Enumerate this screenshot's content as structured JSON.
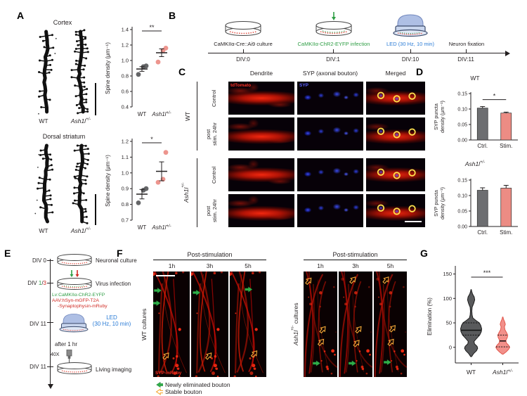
{
  "panels": {
    "A": {
      "label": "A",
      "cortex": {
        "title": "Cortex",
        "images": [
          {
            "label_base": "WT",
            "label_sup": ""
          },
          {
            "label_base": "Ash1l",
            "label_sup": "+/-"
          }
        ]
      },
      "striatum": {
        "title": "Dorsal striatum",
        "images": [
          {
            "label_base": "WT",
            "label_sup": ""
          },
          {
            "label_base": "Ash1l",
            "label_sup": "+/-"
          }
        ]
      }
    },
    "B": {
      "label": "B",
      "steps": [
        {
          "name": "CaMKIIα-Cre::Ai9 culture",
          "div": "DIV:0",
          "color": "#231f20"
        },
        {
          "name": "CaMKIIα-ChR2-EYFP infection",
          "div": "DIV:1",
          "color": "#2f9e45"
        },
        {
          "name": "LED (30 Hz, 10 min)",
          "div": "DIV:10",
          "color": "#2b7cd6"
        },
        {
          "name": "Neuron fixation",
          "div": "DIV:11",
          "color": "#231f20"
        }
      ]
    },
    "C": {
      "label": "C",
      "col_headers": [
        "Dendrite",
        "SYP (axonal bouton)",
        "Merged"
      ],
      "groups": [
        {
          "label_base": "WT",
          "label_sup": ""
        },
        {
          "label_base": "Ash1l",
          "label_sup": "+/-"
        }
      ],
      "row_labels": [
        [
          "Control"
        ],
        [
          "post",
          "stim. 24hr"
        ],
        [
          "Control"
        ],
        [
          "post",
          "stim. 24hr"
        ]
      ],
      "overlays": {
        "dendrite": "tdTomato",
        "syp": "SYP"
      }
    },
    "D": {
      "label": "D"
    },
    "E": {
      "label": "E",
      "events": [
        {
          "div": "DIV 0",
          "text": "Neuronal culture"
        },
        {
          "div_parts": [
            {
              "t": "DIV ",
              "c": "#231f20"
            },
            {
              "t": "1",
              "c": "#2f9e45"
            },
            {
              "t": "/",
              "c": "#231f20"
            },
            {
              "t": "3",
              "c": "#d02a23"
            }
          ],
          "text": "Virus infection"
        },
        {
          "lines": [
            {
              "t": "Lv:CaMKIIα-ChR2-EYFP",
              "c": "#2f9e45"
            },
            {
              "t": "AAV:hSyn-mGFP-T2A",
              "c": "#d02a23"
            },
            {
              "t": "-Synaptophysin-mRuby",
              "c": "#d02a23"
            }
          ]
        },
        {
          "div": "DIV 11",
          "text_l1": "LED",
          "text_l2": "(30 Hz, 10 min)",
          "color": "#2b7cd6"
        },
        {
          "text": "after 1 hr"
        },
        {
          "div": "DIV 11",
          "text": "Living imaging",
          "objective": "40X"
        }
      ]
    },
    "F": {
      "label": "F",
      "groups": [
        {
          "title": "Post-stimulation",
          "times": [
            "1h",
            "3h",
            "5h"
          ],
          "side_base": "WT",
          "side_sup": "",
          "side_rest": " cultures",
          "overlay": "SYP-mRuby",
          "cells": [
            {
              "markers": [
                {
                  "t": "new",
                  "x": 0.16,
                  "y": 0.18,
                  "a": 0
                },
                {
                  "t": "new",
                  "x": 0.13,
                  "y": 0.3,
                  "a": 0
                },
                {
                  "t": "stable",
                  "x": 0.38,
                  "y": 0.79,
                  "a": -50
                }
              ]
            },
            {
              "markers": [
                {
                  "t": "new",
                  "x": 0.18,
                  "y": 0.2,
                  "a": 0
                },
                {
                  "t": "stable",
                  "x": 0.5,
                  "y": 0.79,
                  "a": -50
                }
              ]
            },
            {
              "markers": [
                {
                  "t": "new",
                  "x": 0.55,
                  "y": 0.17,
                  "a": 0
                },
                {
                  "t": "stable",
                  "x": 0.7,
                  "y": 0.77,
                  "a": -50
                }
              ]
            }
          ]
        },
        {
          "title": "Post-stimulation",
          "times": [
            "1h",
            "3h",
            "5h"
          ],
          "side_base": "Ash1l",
          "side_sup": "+/-",
          "side_rest": " cultures",
          "overlay": "",
          "cells": [
            {
              "markers": [
                {
                  "t": "stable",
                  "x": 0.18,
                  "y": 0.08,
                  "a": -50
                },
                {
                  "t": "stable",
                  "x": 0.6,
                  "y": 0.54,
                  "a": -50
                },
                {
                  "t": "stable",
                  "x": 0.55,
                  "y": 0.66,
                  "a": -50
                },
                {
                  "t": "new",
                  "x": 0.42,
                  "y": 0.87,
                  "a": 0
                }
              ]
            },
            {
              "markers": [
                {
                  "t": "stable",
                  "x": 0.45,
                  "y": 0.07,
                  "a": -50
                },
                {
                  "t": "stable",
                  "x": 0.62,
                  "y": 0.54,
                  "a": -50
                },
                {
                  "t": "stable",
                  "x": 0.56,
                  "y": 0.67,
                  "a": -50
                },
                {
                  "t": "new",
                  "x": 0.44,
                  "y": 0.87,
                  "a": 0
                }
              ]
            },
            {
              "markers": [
                {
                  "t": "stable",
                  "x": 0.4,
                  "y": 0.07,
                  "a": -50
                },
                {
                  "t": "stable",
                  "x": 0.6,
                  "y": 0.53,
                  "a": -50
                },
                {
                  "t": "stable",
                  "x": 0.55,
                  "y": 0.66,
                  "a": -50
                },
                {
                  "t": "new",
                  "x": 0.45,
                  "y": 0.86,
                  "a": 0
                }
              ]
            }
          ]
        }
      ],
      "legend": [
        {
          "label": "Newly eliminated bouton"
        },
        {
          "label": "Stable bouton"
        }
      ]
    },
    "G": {
      "label": "G"
    }
  },
  "chart_data": [
    {
      "type": "scatter",
      "region": "Cortex",
      "ylabel": "Spine density (μm⁻¹)",
      "ylim": [
        0.4,
        1.4
      ],
      "yticks": [
        0.4,
        0.6,
        0.8,
        1.0,
        1.2,
        1.4
      ],
      "decimals": 1,
      "sig": "**",
      "groups": [
        {
          "label_base": "WT",
          "label_sup": "",
          "italic": false,
          "color": "#58595b",
          "points": [
            0.82,
            0.92,
            0.93
          ],
          "mean": 0.89,
          "sem": 0.03
        },
        {
          "label_base": "Ash1l",
          "label_sup": "+/-",
          "italic": true,
          "color": "#ec8c84",
          "points": [
            0.98,
            1.13,
            1.16
          ],
          "mean": 1.1,
          "sem": 0.05
        }
      ]
    },
    {
      "type": "scatter",
      "region": "Dorsal striatum",
      "ylabel": "Spine density (μm⁻¹)",
      "ylim": [
        0.7,
        1.2
      ],
      "yticks": [
        0.7,
        0.8,
        0.9,
        1.0,
        1.1,
        1.2
      ],
      "decimals": 1,
      "sig": "*",
      "groups": [
        {
          "label_base": "WT",
          "label_sup": "",
          "italic": false,
          "color": "#58595b",
          "points": [
            0.81,
            0.89,
            0.9
          ],
          "mean": 0.865,
          "sem": 0.03
        },
        {
          "label_base": "Ash1l",
          "label_sup": "+/-",
          "italic": true,
          "color": "#ec8c84",
          "points": [
            0.94,
            0.96,
            1.13
          ],
          "mean": 1.01,
          "sem": 0.06
        }
      ]
    },
    {
      "type": "bar",
      "title_base": "WT",
      "title_sup": "",
      "ylabel_lines": [
        "SYP puncta",
        "density (μm⁻¹)"
      ],
      "ylim": [
        0,
        0.15
      ],
      "yticks": [
        0,
        0.05,
        0.1,
        0.15
      ],
      "decimals": 2,
      "sig": "*",
      "categories": [
        "Ctrl.",
        "Stim."
      ],
      "values": [
        0.103,
        0.087
      ],
      "errors": [
        0.005,
        0.003
      ],
      "colors": [
        "#6d6e71",
        "#ec8c84"
      ]
    },
    {
      "type": "bar",
      "title_base": "Ash1l",
      "title_sup": "+/-",
      "ylabel_lines": [
        "SYP puncta",
        "density (μm⁻¹)"
      ],
      "ylim": [
        0,
        0.15
      ],
      "yticks": [
        0,
        0.05,
        0.1,
        0.15
      ],
      "decimals": 2,
      "sig": null,
      "categories": [
        "Ctrl.",
        "Stim."
      ],
      "values": [
        0.117,
        0.124
      ],
      "errors": [
        0.008,
        0.009
      ],
      "colors": [
        "#6d6e71",
        "#ec8c84"
      ]
    },
    {
      "type": "violin",
      "ylabel": "Elimination (%)",
      "ylim": [
        -32,
        158
      ],
      "yticks": [
        0,
        50,
        100,
        150
      ],
      "decimals": 0,
      "sig": "***",
      "groups": [
        {
          "label_base": "WT",
          "label_sup": "",
          "italic": false,
          "fill": "#595a5c",
          "stroke": "#1b1b1b",
          "median": 35,
          "q1": 25,
          "q3": 50,
          "profile": [
            [
              -19,
              0.04
            ],
            [
              -13,
              0.2
            ],
            [
              -7,
              0.45
            ],
            [
              -2,
              0.55
            ],
            [
              2,
              0.5
            ],
            [
              7,
              0.28
            ],
            [
              12,
              0.24
            ],
            [
              18,
              0.45
            ],
            [
              25,
              0.72
            ],
            [
              32,
              0.85
            ],
            [
              38,
              0.88
            ],
            [
              45,
              0.8
            ],
            [
              50,
              0.68
            ],
            [
              55,
              0.4
            ],
            [
              60,
              0.15
            ],
            [
              66,
              0.08
            ],
            [
              74,
              0.06
            ],
            [
              82,
              0.08
            ],
            [
              90,
              0.22
            ],
            [
              97,
              0.3
            ],
            [
              103,
              0.26
            ],
            [
              109,
              0.12
            ],
            [
              115,
              0.04
            ],
            [
              118,
              0.02
            ]
          ]
        },
        {
          "label_base": "Ash1l",
          "label_sup": "+/-",
          "italic": true,
          "fill": "#f2908a",
          "stroke": "#e2574c",
          "median": 13,
          "q1": 1,
          "q3": 25,
          "profile": [
            [
              -14,
              0.04
            ],
            [
              -9,
              0.3
            ],
            [
              -4,
              0.5
            ],
            [
              0,
              0.58
            ],
            [
              4,
              0.5
            ],
            [
              9,
              0.3
            ],
            [
              14,
              0.26
            ],
            [
              20,
              0.38
            ],
            [
              25,
              0.42
            ],
            [
              30,
              0.32
            ],
            [
              36,
              0.18
            ],
            [
              42,
              0.14
            ],
            [
              47,
              0.22
            ],
            [
              52,
              0.16
            ],
            [
              57,
              0.07
            ],
            [
              62,
              0.02
            ]
          ]
        }
      ]
    }
  ]
}
